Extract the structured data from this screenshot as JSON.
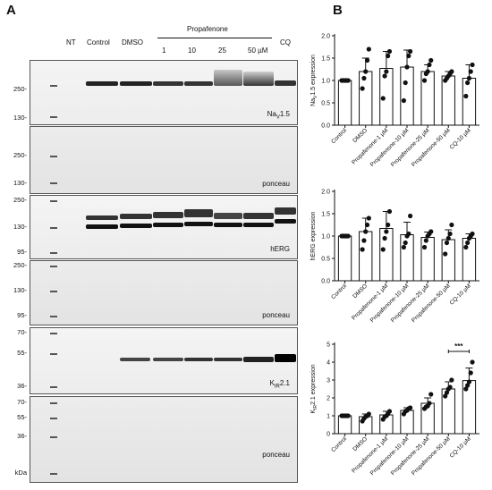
{
  "panels": {
    "a": "A",
    "b": "B"
  },
  "lanes": {
    "nt": "NT",
    "control": "Control",
    "dmso": "DMSO",
    "propafenone": "Propafenone",
    "doses": [
      "1",
      "10",
      "25",
      "50 µM"
    ],
    "cq": "CQ"
  },
  "blots": [
    {
      "label": "Na",
      "sub": "V",
      "suffix": "1.5",
      "mw": [
        "250-",
        "130-"
      ]
    },
    {
      "label": "ponceau",
      "mw": [
        "250-",
        "130-"
      ]
    },
    {
      "label": "hERG",
      "mw": [
        "250-",
        "130-",
        "95-"
      ]
    },
    {
      "label": "ponceau",
      "mw": [
        "250-",
        "130-",
        "95-"
      ]
    },
    {
      "label": "K",
      "sub": "IR",
      "suffix": "2.1",
      "mw": [
        "70-",
        "55-",
        "36-"
      ]
    },
    {
      "label": "ponceau",
      "mw": [
        "70-",
        "55-",
        "36-",
        "kDa"
      ]
    }
  ],
  "chart_data": [
    {
      "type": "bar",
      "categories": [
        "Control",
        "DMSO",
        "Propafenone-1 µM",
        "Propafenone-10 µM",
        "Propafenone-25 µM",
        "Propafenone-50 µM",
        "CQ-10 µM"
      ],
      "values": [
        1.0,
        1.2,
        1.27,
        1.3,
        1.2,
        1.1,
        1.05
      ],
      "errors": [
        0.0,
        0.3,
        0.38,
        0.38,
        0.15,
        0.1,
        0.3
      ],
      "points": [
        [
          1,
          1,
          1,
          1,
          1
        ],
        [
          0.82,
          1.05,
          1.2,
          1.45,
          1.7
        ],
        [
          0.6,
          1.1,
          1.2,
          1.55,
          1.65
        ],
        [
          0.55,
          0.95,
          1.3,
          1.55,
          1.65
        ],
        [
          1.0,
          1.15,
          1.2,
          1.35,
          1.45
        ],
        [
          1.0,
          1.05,
          1.1,
          1.15,
          1.2
        ],
        [
          0.65,
          0.95,
          1.05,
          1.2,
          1.35
        ]
      ],
      "ylabel": "NaV1.5 expression",
      "ylabel_main": "Na",
      "ylabel_sub": "V",
      "ylabel_rest": "1.5 expression",
      "ylim": [
        0,
        2.0
      ],
      "yticks": [
        "0.0",
        "0.5",
        "1.0",
        "1.5",
        "2.0"
      ],
      "yticks_vals": [
        0,
        0.5,
        1.0,
        1.5,
        2.0
      ]
    },
    {
      "type": "bar",
      "categories": [
        "Control",
        "DMSO",
        "Propafenone-1 µM",
        "Propafenone-10 µM",
        "Propafenone-25 µM",
        "Propafenone-50 µM",
        "CQ-10 µM"
      ],
      "values": [
        1.0,
        1.1,
        1.17,
        1.03,
        0.97,
        0.92,
        0.95
      ],
      "errors": [
        0.0,
        0.3,
        0.38,
        0.28,
        0.12,
        0.22,
        0.1
      ],
      "points": [
        [
          1,
          1,
          1,
          1,
          1
        ],
        [
          0.7,
          0.9,
          1.1,
          1.25,
          1.4
        ],
        [
          0.7,
          0.95,
          1.1,
          1.25,
          1.55
        ],
        [
          0.75,
          0.85,
          1.0,
          1.05,
          1.45
        ],
        [
          0.75,
          0.9,
          1.0,
          1.05,
          1.1
        ],
        [
          0.6,
          0.85,
          0.95,
          1.05,
          1.25
        ],
        [
          0.75,
          0.85,
          0.95,
          1.0,
          1.05
        ]
      ],
      "ylabel": "hERG expression",
      "ylabel_main": "hERG expression",
      "ylabel_sub": "",
      "ylabel_rest": "",
      "ylim": [
        0,
        2.0
      ],
      "yticks": [
        "0.0",
        "0.5",
        "1.0",
        "1.5",
        "2.0"
      ],
      "yticks_vals": [
        0,
        0.5,
        1.0,
        1.5,
        2.0
      ]
    },
    {
      "type": "bar",
      "categories": [
        "Control",
        "DMSO",
        "Propafenone-1 µM",
        "Propafenone-10 µM",
        "Propafenone-25 µM",
        "Propafenone-50 µM",
        "CQ-10 µM"
      ],
      "values": [
        1.0,
        0.95,
        1.05,
        1.3,
        1.7,
        2.5,
        2.97
      ],
      "errors": [
        0.0,
        0.15,
        0.2,
        0.15,
        0.3,
        0.4,
        0.7
      ],
      "points": [
        [
          1,
          1,
          1,
          1,
          1
        ],
        [
          0.7,
          0.85,
          0.95,
          1.0,
          1.1
        ],
        [
          0.8,
          0.95,
          1.0,
          1.1,
          1.25
        ],
        [
          1.1,
          1.25,
          1.3,
          1.4,
          1.45
        ],
        [
          1.4,
          1.5,
          1.55,
          1.7,
          2.2
        ],
        [
          2.1,
          2.3,
          2.5,
          2.6,
          3.0
        ],
        [
          2.5,
          2.7,
          2.9,
          3.4,
          4.0
        ]
      ],
      "ylabel": "KIR2.1 expression",
      "ylabel_main": "K",
      "ylabel_sub": "IR",
      "ylabel_rest": "2.1 expression",
      "ylim": [
        0,
        5
      ],
      "yticks": [
        "0",
        "1",
        "2",
        "3",
        "4",
        "5"
      ],
      "yticks_vals": [
        0,
        1,
        2,
        3,
        4,
        5
      ],
      "annotation": "***",
      "annotation_between": [
        5,
        6
      ]
    }
  ]
}
